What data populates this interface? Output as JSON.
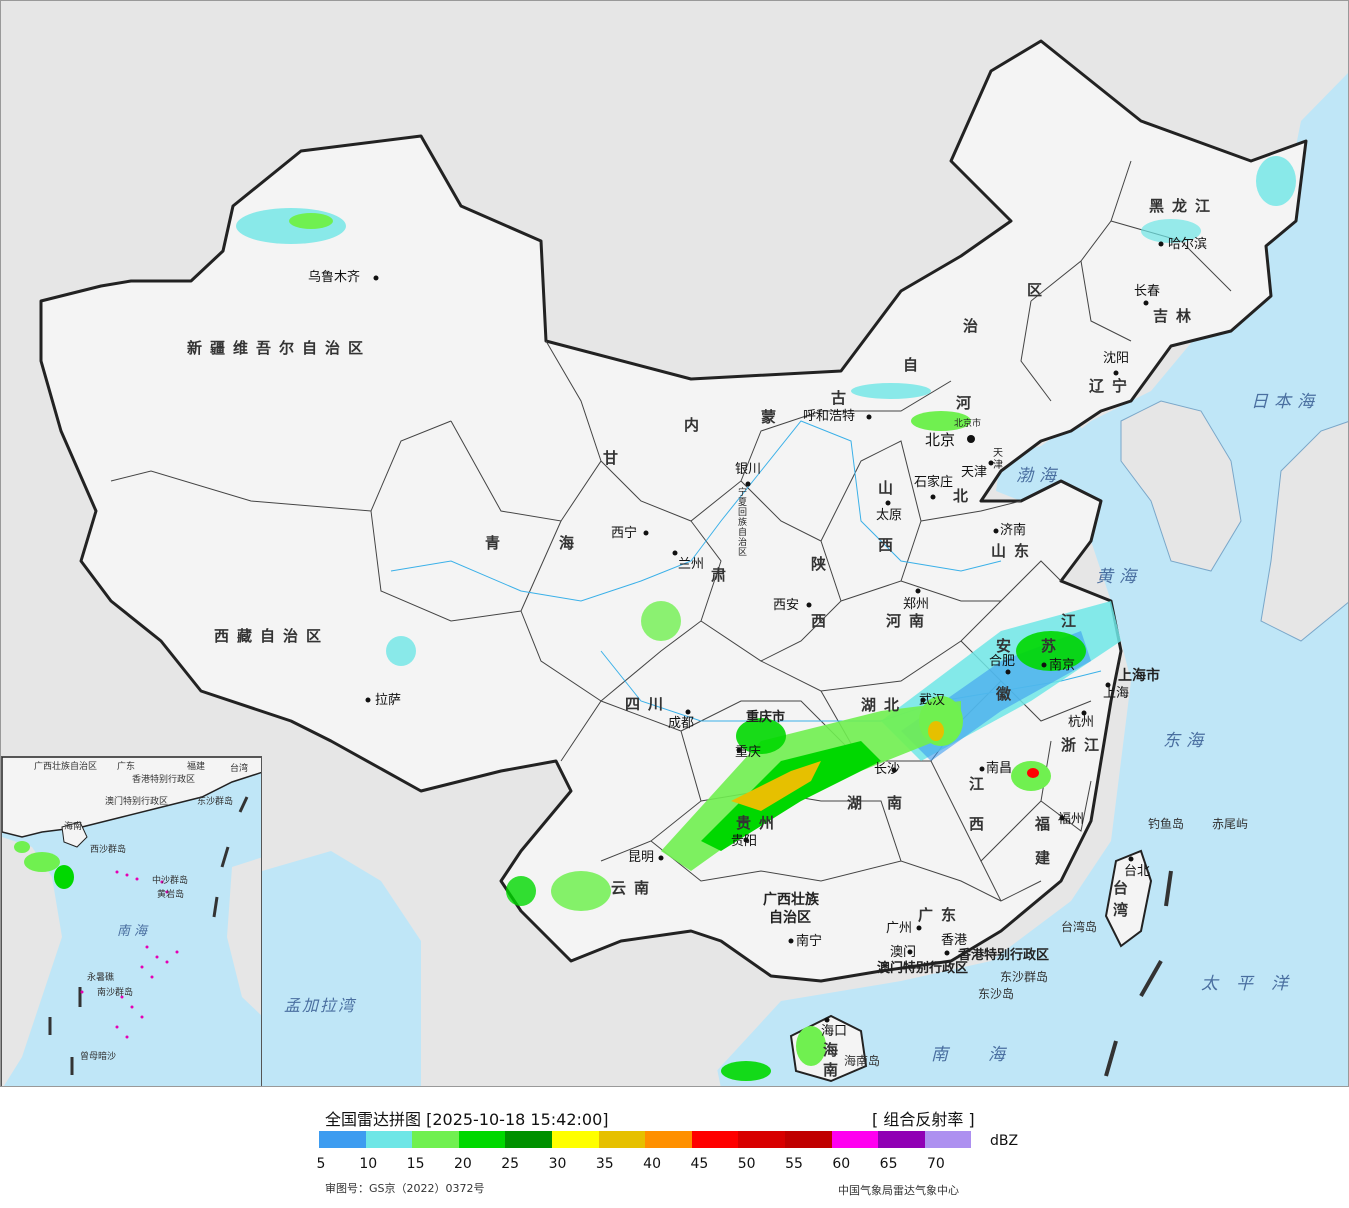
{
  "map": {
    "provinces": [
      {
        "id": "xinjiang",
        "text": "新疆维吾尔自治区"
      },
      {
        "id": "xizang",
        "text": "西藏自治区"
      },
      {
        "id": "qinghai-1",
        "text": "青"
      },
      {
        "id": "qinghai-2",
        "text": "海"
      },
      {
        "id": "gansu-1",
        "text": "甘"
      },
      {
        "id": "gansu-2",
        "text": "肃"
      },
      {
        "id": "neimenggu-1",
        "text": "内"
      },
      {
        "id": "neimenggu-2",
        "text": "蒙"
      },
      {
        "id": "neimenggu-3",
        "text": "古"
      },
      {
        "id": "neimenggu-4",
        "text": "自"
      },
      {
        "id": "neimenggu-5",
        "text": "治"
      },
      {
        "id": "neimenggu-6",
        "text": "区"
      },
      {
        "id": "heilongjiang",
        "text": "黑龙江"
      },
      {
        "id": "jilin",
        "text": "吉林"
      },
      {
        "id": "liaoning",
        "text": "辽宁"
      },
      {
        "id": "hebei-1",
        "text": "河"
      },
      {
        "id": "hebei-2",
        "text": "北"
      },
      {
        "id": "shanxi-1",
        "text": "山"
      },
      {
        "id": "shanxi-2",
        "text": "西"
      },
      {
        "id": "shandong",
        "text": "山东"
      },
      {
        "id": "shaanxi-1",
        "text": "陕"
      },
      {
        "id": "shaanxi-2",
        "text": "西"
      },
      {
        "id": "henan",
        "text": "河南"
      },
      {
        "id": "jiangsu-1",
        "text": "江"
      },
      {
        "id": "jiangsu-2",
        "text": "苏"
      },
      {
        "id": "anhui-1",
        "text": "安"
      },
      {
        "id": "anhui-2",
        "text": "徽"
      },
      {
        "id": "sichuan",
        "text": "四川"
      },
      {
        "id": "chongqing",
        "text": "重庆市"
      },
      {
        "id": "hubei",
        "text": "湖北"
      },
      {
        "id": "hunan-1",
        "text": "湖"
      },
      {
        "id": "hunan-2",
        "text": "南"
      },
      {
        "id": "jiangxi-1",
        "text": "江"
      },
      {
        "id": "jiangxi-2",
        "text": "西"
      },
      {
        "id": "zhejiang",
        "text": "浙江"
      },
      {
        "id": "fujian-1",
        "text": "福"
      },
      {
        "id": "fujian-2",
        "text": "建"
      },
      {
        "id": "guizhou",
        "text": "贵州"
      },
      {
        "id": "yunnan",
        "text": "云南"
      },
      {
        "id": "guangxi-1",
        "text": "广西壮族"
      },
      {
        "id": "guangxi-2",
        "text": "自治区"
      },
      {
        "id": "guangdong",
        "text": "广东"
      },
      {
        "id": "hainan",
        "text": "海南"
      },
      {
        "id": "taiwan-1",
        "text": "台"
      },
      {
        "id": "taiwan-2",
        "text": "湾"
      },
      {
        "id": "ningxia",
        "text": "宁夏回族自治区"
      },
      {
        "id": "shanghai",
        "text": "上海市"
      },
      {
        "id": "hk",
        "text": "香港特别行政区"
      },
      {
        "id": "macau",
        "text": "澳门特别行政区"
      },
      {
        "id": "tianjin",
        "text": "天津"
      },
      {
        "id": "beijing-small",
        "text": "北京市"
      }
    ],
    "cities": [
      {
        "id": "urumqi",
        "text": "乌鲁木齐"
      },
      {
        "id": "lhasa",
        "text": "拉萨"
      },
      {
        "id": "xining",
        "text": "西宁"
      },
      {
        "id": "lanzhou",
        "text": "兰州"
      },
      {
        "id": "yinchuan",
        "text": "银川"
      },
      {
        "id": "hohhot",
        "text": "呼和浩特"
      },
      {
        "id": "harbin",
        "text": "哈尔滨"
      },
      {
        "id": "changchun",
        "text": "长春"
      },
      {
        "id": "shenyang",
        "text": "沈阳"
      },
      {
        "id": "beijing",
        "text": "北京"
      },
      {
        "id": "tianjin-city",
        "text": "天津"
      },
      {
        "id": "shijiazhuang",
        "text": "石家庄"
      },
      {
        "id": "taiyuan",
        "text": "太原"
      },
      {
        "id": "jinan",
        "text": "济南"
      },
      {
        "id": "zhengzhou",
        "text": "郑州"
      },
      {
        "id": "xian",
        "text": "西安"
      },
      {
        "id": "chengdu",
        "text": "成都"
      },
      {
        "id": "chongqing-city",
        "text": "重庆"
      },
      {
        "id": "wuhan",
        "text": "武汉"
      },
      {
        "id": "hefei",
        "text": "合肥"
      },
      {
        "id": "nanjing",
        "text": "南京"
      },
      {
        "id": "shanghai-city",
        "text": "上海"
      },
      {
        "id": "hangzhou",
        "text": "杭州"
      },
      {
        "id": "nanchang",
        "text": "南昌"
      },
      {
        "id": "changsha",
        "text": "长沙"
      },
      {
        "id": "fuzhou",
        "text": "福州"
      },
      {
        "id": "guiyang",
        "text": "贵阳"
      },
      {
        "id": "kunming",
        "text": "昆明"
      },
      {
        "id": "nanning",
        "text": "南宁"
      },
      {
        "id": "guangzhou",
        "text": "广州"
      },
      {
        "id": "macau-city",
        "text": "澳门"
      },
      {
        "id": "hongkong-city",
        "text": "香港"
      },
      {
        "id": "haikou",
        "text": "海口"
      },
      {
        "id": "taipei",
        "text": "台北"
      }
    ],
    "seas": [
      {
        "id": "japan-sea",
        "text": "日本海"
      },
      {
        "id": "bohai",
        "text": "渤海"
      },
      {
        "id": "yellow-sea",
        "text": "黄海"
      },
      {
        "id": "east-sea",
        "text": "东海"
      },
      {
        "id": "south-sea",
        "text": "南海"
      },
      {
        "id": "pacific",
        "text": "太平洋"
      },
      {
        "id": "bengal",
        "text": "孟加拉湾"
      }
    ],
    "islands": [
      {
        "id": "diaoyu",
        "text": "钓鱼岛"
      },
      {
        "id": "chiwei",
        "text": "赤尾屿"
      },
      {
        "id": "taiwan-island",
        "text": "台湾岛"
      },
      {
        "id": "dongsha-islands",
        "text": "东沙群岛"
      },
      {
        "id": "dongsha-island",
        "text": "东沙岛"
      },
      {
        "id": "hainan-island",
        "text": "海南岛"
      }
    ]
  },
  "inset": {
    "labels": [
      {
        "id": "i-guangxi",
        "text": "广西壮族自治区"
      },
      {
        "id": "i-guangdong",
        "text": "广东"
      },
      {
        "id": "i-fujian",
        "text": "福建"
      },
      {
        "id": "i-taiwan",
        "text": "台湾"
      },
      {
        "id": "i-hk",
        "text": "香港特别行政区"
      },
      {
        "id": "i-macau",
        "text": "澳门特别行政区"
      },
      {
        "id": "i-dongsha",
        "text": "东沙群岛"
      },
      {
        "id": "i-hainan",
        "text": "海南"
      },
      {
        "id": "i-xisha",
        "text": "西沙群岛"
      },
      {
        "id": "i-zhongsha",
        "text": "中沙群岛"
      },
      {
        "id": "i-huangyan",
        "text": "黄岩岛"
      },
      {
        "id": "i-nansha",
        "text": "南沙群岛"
      },
      {
        "id": "i-yongshu",
        "text": "永暑礁"
      },
      {
        "id": "i-zengmu",
        "text": "曾母暗沙"
      },
      {
        "id": "i-southsea",
        "text": "南海"
      }
    ]
  },
  "legend": {
    "title": "全国雷达拼图 [2025-10-18 15:42:00]",
    "product": "[ 组合反射率 ]",
    "unit": "dBZ",
    "colors": [
      "#3d9cf0",
      "#6ee6e6",
      "#70f050",
      "#00d800",
      "#009000",
      "#ffff00",
      "#e6c000",
      "#ff9000",
      "#ff0000",
      "#d80000",
      "#c00000",
      "#ff00f0",
      "#9000b4",
      "#ad90f0"
    ],
    "ticks": [
      "5",
      "10",
      "15",
      "20",
      "25",
      "30",
      "35",
      "40",
      "45",
      "50",
      "55",
      "60",
      "65",
      "70"
    ],
    "review_no": "审图号：GS京（2022）0372号",
    "org": "中国气象局雷达气象中心"
  }
}
